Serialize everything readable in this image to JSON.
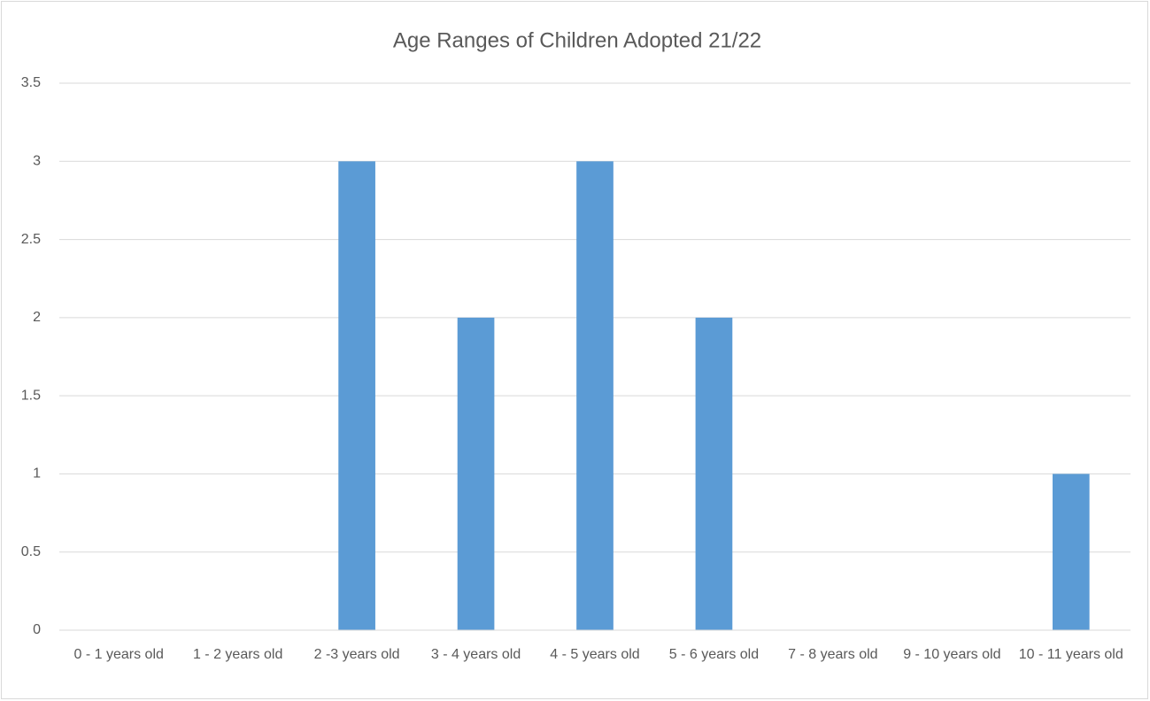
{
  "chart_data": {
    "type": "bar",
    "title": "Age Ranges of Children Adopted 21/22",
    "categories": [
      "0 - 1 years old",
      "1 - 2 years old",
      "2 -3 years old",
      "3 - 4 years old",
      "4 - 5 years old",
      "5 - 6 years old",
      "7 - 8 years old",
      "9 - 10 years old",
      "10 - 11 years old"
    ],
    "values": [
      0,
      0,
      3,
      2,
      3,
      2,
      0,
      0,
      1
    ],
    "color": "#5b9bd5",
    "ylim": [
      0,
      3.5
    ],
    "yticks": [
      0,
      0.5,
      1,
      1.5,
      2,
      2.5,
      3,
      3.5
    ],
    "grid": true
  }
}
